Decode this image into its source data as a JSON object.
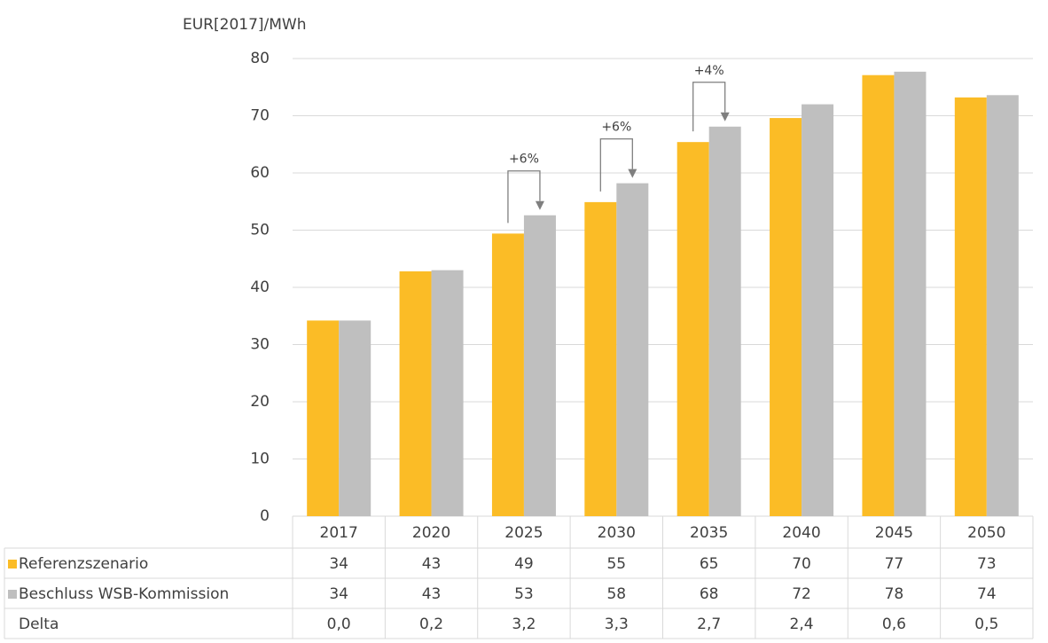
{
  "chart_data": {
    "type": "bar",
    "y_label": "EUR[2017]/MWh",
    "categories": [
      "2017",
      "2020",
      "2025",
      "2030",
      "2035",
      "2040",
      "2045",
      "2050"
    ],
    "series": [
      {
        "name": "Referenzszenario",
        "color": "#fbbc26",
        "values": [
          34.2,
          42.8,
          49.4,
          54.9,
          65.4,
          69.6,
          77.1,
          73.2
        ],
        "value_labels": [
          "34",
          "43",
          "49",
          "55",
          "65",
          "70",
          "77",
          "73"
        ]
      },
      {
        "name": "Beschluss WSB-Kommission",
        "color": "#bfbfbf",
        "values": [
          34.2,
          43.0,
          52.6,
          58.2,
          68.1,
          72.0,
          77.7,
          73.6
        ],
        "value_labels": [
          "34",
          "43",
          "53",
          "58",
          "68",
          "72",
          "78",
          "74"
        ]
      }
    ],
    "delta": {
      "name": "Delta",
      "labels": [
        "0,0",
        "0,2",
        "3,2",
        "3,3",
        "2,7",
        "2,4",
        "0,6",
        "0,5"
      ]
    },
    "annotations": [
      {
        "text": "+6%",
        "at": "2025"
      },
      {
        "text": "+6%",
        "at": "2030"
      },
      {
        "text": "+4%",
        "at": "2035"
      }
    ],
    "ylim": [
      0,
      80
    ],
    "yticks": [
      0,
      10,
      20,
      30,
      40,
      50,
      60,
      70,
      80
    ],
    "grid": true
  }
}
